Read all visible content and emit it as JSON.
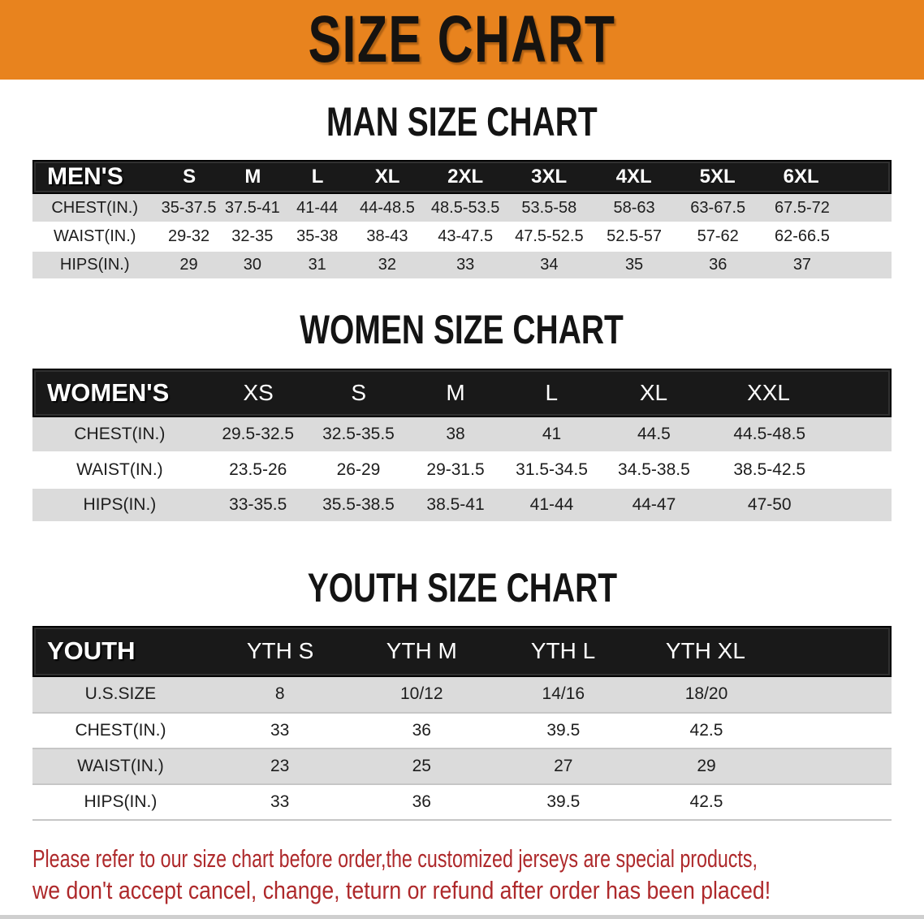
{
  "banner": {
    "title": "SIZE CHART"
  },
  "colors": {
    "banner_bg": "#E8831E",
    "table_header_bg": "#191919",
    "row_stripe": "#DBDBDB",
    "note_text": "#AE292B"
  },
  "sections": [
    {
      "heading": "MAN SIZE CHART",
      "table": {
        "header_label": "MEN'S",
        "columns": [
          "S",
          "M",
          "L",
          "XL",
          "2XL",
          "3XL",
          "4XL",
          "5XL",
          "6XL"
        ],
        "rows": [
          {
            "label": "CHEST(IN.)",
            "values": [
              "35-37.5",
              "37.5-41",
              "41-44",
              "44-48.5",
              "48.5-53.5",
              "53.5-58",
              "58-63",
              "63-67.5",
              "67.5-72"
            ]
          },
          {
            "label": "WAIST(IN.)",
            "values": [
              "29-32",
              "32-35",
              "35-38",
              "38-43",
              "43-47.5",
              "47.5-52.5",
              "52.5-57",
              "57-62",
              "62-66.5"
            ]
          },
          {
            "label": "HIPS(IN.)",
            "values": [
              "29",
              "30",
              "31",
              "32",
              "33",
              "34",
              "35",
              "36",
              "37"
            ]
          }
        ]
      }
    },
    {
      "heading": "WOMEN SIZE CHART",
      "table": {
        "header_label": "WOMEN'S",
        "columns": [
          "XS",
          "S",
          "M",
          "L",
          "XL",
          "XXL"
        ],
        "rows": [
          {
            "label": "CHEST(IN.)",
            "values": [
              "29.5-32.5",
              "32.5-35.5",
              "38",
              "41",
              "44.5",
              "44.5-48.5"
            ]
          },
          {
            "label": "WAIST(IN.)",
            "values": [
              "23.5-26",
              "26-29",
              "29-31.5",
              "31.5-34.5",
              "34.5-38.5",
              "38.5-42.5"
            ]
          },
          {
            "label": "HIPS(IN.)",
            "values": [
              "33-35.5",
              "35.5-38.5",
              "38.5-41",
              "41-44",
              "44-47",
              "47-50"
            ]
          }
        ]
      }
    },
    {
      "heading": "YOUTH SIZE CHART",
      "table": {
        "header_label": "YOUTH",
        "columns": [
          "YTH S",
          "YTH M",
          "YTH L",
          "YTH XL"
        ],
        "rows": [
          {
            "label": "U.S.SIZE",
            "values": [
              "8",
              "10/12",
              "14/16",
              "18/20"
            ]
          },
          {
            "label": "CHEST(IN.)",
            "values": [
              "33",
              "36",
              "39.5",
              "42.5"
            ]
          },
          {
            "label": "WAIST(IN.)",
            "values": [
              "23",
              "25",
              "27",
              "29"
            ]
          },
          {
            "label": "HIPS(IN.)",
            "values": [
              "33",
              "36",
              "39.5",
              "42.5"
            ]
          }
        ]
      }
    }
  ],
  "footer_note": {
    "line1": "Please refer to our size chart before order,the customized jerseys are special products,",
    "line2": "we don't accept cancel, change, teturn or refund after order has been placed!"
  }
}
